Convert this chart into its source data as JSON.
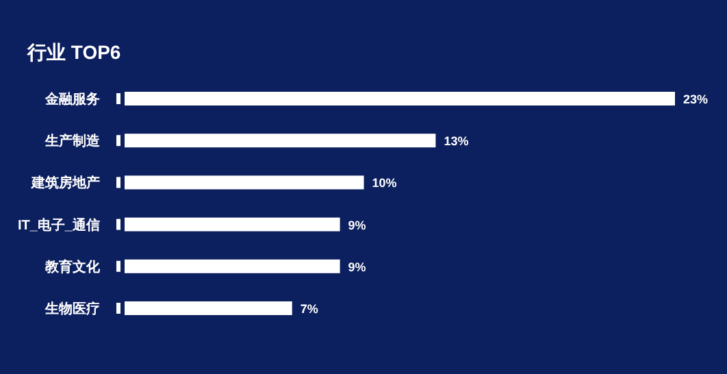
{
  "chart_data": {
    "type": "bar",
    "orientation": "horizontal",
    "title": "行业  TOP6",
    "categories": [
      "金融服务",
      "生产制造",
      "建筑房地产",
      "IT_电子_通信",
      "教育文化",
      "生物医疗"
    ],
    "values": [
      23,
      13,
      10,
      9,
      9,
      7
    ],
    "value_labels": [
      "23%",
      "13%",
      "10%",
      "9%",
      "9%",
      "7%"
    ],
    "color": "#ffffff"
  }
}
